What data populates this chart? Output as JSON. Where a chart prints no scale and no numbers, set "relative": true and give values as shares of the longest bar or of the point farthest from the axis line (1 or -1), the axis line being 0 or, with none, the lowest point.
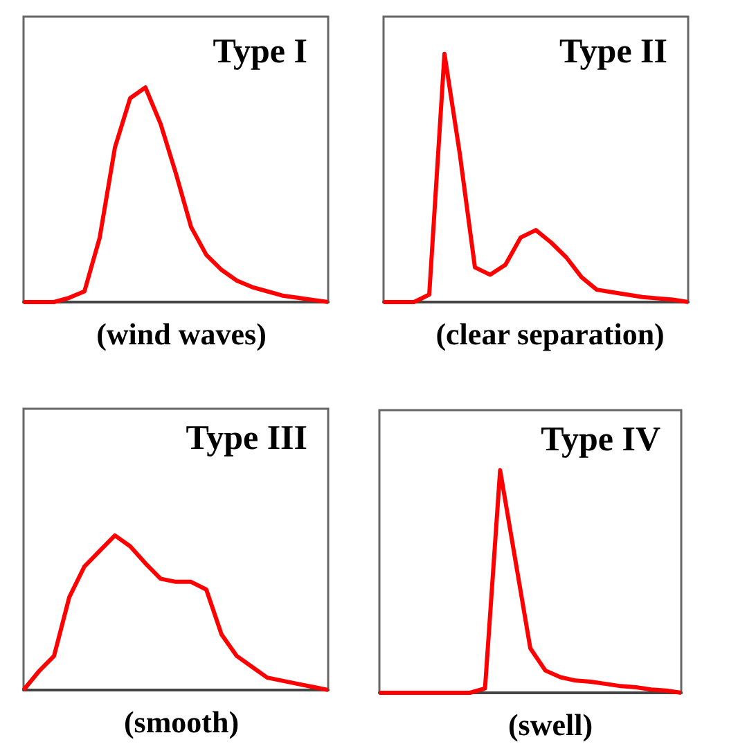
{
  "chart_data": [
    {
      "type": "line",
      "title": "Type I",
      "annotations": [
        "(wind waves)"
      ],
      "relative": true,
      "categories": [
        null,
        null,
        null,
        null,
        null,
        null,
        null,
        null,
        null,
        null,
        null,
        null,
        null,
        null,
        null,
        null,
        null,
        null,
        null,
        null,
        null
      ],
      "series": [
        {
          "color": "#ff0000",
          "values": [
            0,
            0,
            0,
            0.02,
            0.05,
            0.3,
            0.72,
            0.95,
            1,
            0.83,
            0.6,
            0.35,
            0.22,
            0.15,
            0.1,
            0.07,
            0.05,
            0.03,
            0.02,
            0.01,
            0
          ]
        }
      ]
    },
    {
      "type": "line",
      "title": "Type II",
      "annotations": [
        "(clear separation)"
      ],
      "relative": true,
      "categories": [
        null,
        null,
        null,
        null,
        null,
        null,
        null,
        null,
        null,
        null,
        null,
        null,
        null,
        null,
        null,
        null,
        null,
        null,
        null,
        null,
        null
      ],
      "series": [
        {
          "color": "#ff0000",
          "values": [
            0,
            0,
            0,
            0.03,
            1,
            0.6,
            0.14,
            0.11,
            0.15,
            0.26,
            0.29,
            0.24,
            0.18,
            0.1,
            0.05,
            0.04,
            0.03,
            0.02,
            0.015,
            0.01,
            0
          ]
        }
      ]
    },
    {
      "type": "line",
      "title": "Type III",
      "annotations": [
        "(smooth)"
      ],
      "relative": true,
      "categories": [
        null,
        null,
        null,
        null,
        null,
        null,
        null,
        null,
        null,
        null,
        null,
        null,
        null,
        null,
        null,
        null,
        null,
        null,
        null,
        null,
        null
      ],
      "series": [
        {
          "color": "#ff0000",
          "values": [
            0,
            0.12,
            0.22,
            0.6,
            0.8,
            0.9,
            1,
            0.93,
            0.82,
            0.72,
            0.7,
            0.7,
            0.65,
            0.36,
            0.22,
            0.15,
            0.08,
            0.06,
            0.04,
            0.02,
            0
          ]
        }
      ]
    },
    {
      "type": "line",
      "title": "Type IV",
      "annotations": [
        "(swell)"
      ],
      "relative": true,
      "categories": [
        null,
        null,
        null,
        null,
        null,
        null,
        null,
        null,
        null,
        null,
        null,
        null,
        null,
        null,
        null,
        null,
        null,
        null,
        null,
        null,
        null
      ],
      "series": [
        {
          "color": "#ff0000",
          "values": [
            0,
            0,
            0,
            0,
            0,
            0,
            0,
            0.02,
            1,
            0.6,
            0.2,
            0.1,
            0.07,
            0.055,
            0.05,
            0.04,
            0.03,
            0.025,
            0.015,
            0.01,
            0
          ]
        }
      ]
    }
  ]
}
